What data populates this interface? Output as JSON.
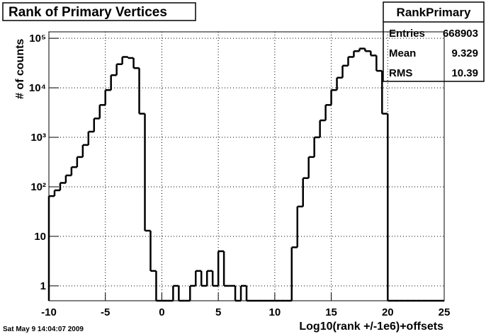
{
  "chart_data": {
    "type": "histogram",
    "title": "Rank of Primary Vertices",
    "x_label": "Log10(rank +/-1e6)+offsets",
    "y_label": "# of counts",
    "timestamp": "Sat May  9 14:04:07 2009",
    "stats": {
      "name": "RankPrimary",
      "rows": [
        {
          "label": "Entries",
          "value": 668903
        },
        {
          "label": "Mean",
          "value": 9.329
        },
        {
          "label": "RMS",
          "value": 10.39
        }
      ]
    },
    "log_y": true,
    "grid": true,
    "color": "#000000",
    "bins": [
      -10,
      -9.5,
      -9,
      -8.5,
      -8,
      -7.5,
      -7,
      -6.5,
      -6,
      -5.5,
      -5,
      -4.5,
      -4,
      -3.5,
      -3,
      -2.5,
      -2,
      -1.5,
      -1,
      -0.5,
      0,
      0.5,
      1,
      1.5,
      2,
      2.5,
      3,
      3.5,
      4,
      4.5,
      5,
      5.5,
      6,
      6.5,
      7,
      7.5,
      8,
      8.5,
      9,
      9.5,
      10,
      10.5,
      11,
      11.5,
      12,
      12.5,
      13,
      13.5,
      14,
      14.5,
      15,
      15.5,
      16,
      16.5,
      17,
      17.5,
      18,
      18.5,
      19,
      19.5,
      20,
      20.5,
      21,
      21.5,
      22,
      22.5,
      23,
      23.5,
      24,
      24.5,
      25
    ],
    "values": [
      65,
      85,
      120,
      170,
      250,
      400,
      700,
      1300,
      2400,
      4500,
      9000,
      18000,
      30000,
      42000,
      40000,
      25000,
      3000,
      13,
      2,
      0,
      0,
      0,
      1,
      0,
      0,
      1,
      2,
      1,
      2,
      1,
      5,
      1,
      1,
      0,
      1,
      0,
      0,
      0,
      0,
      0,
      0,
      0,
      0,
      6,
      40,
      150,
      400,
      1000,
      2200,
      4500,
      9000,
      16000,
      28000,
      42000,
      55000,
      62000,
      55000,
      45000,
      22000,
      3000,
      0,
      0,
      0,
      0,
      0,
      0,
      0,
      0,
      0,
      0
    ],
    "xlim": [
      -10,
      25
    ],
    "xticks": [
      -10,
      -5,
      0,
      5,
      10,
      15,
      20,
      25
    ],
    "ylim": [
      0.5,
      135000
    ],
    "yticks": [
      1,
      10,
      {
        "value": 100,
        "label": "10²"
      },
      {
        "value": 1000,
        "label": "10³"
      },
      {
        "value": 10000,
        "label": "10⁴"
      },
      {
        "value": 100000,
        "label": "10⁵"
      }
    ]
  }
}
